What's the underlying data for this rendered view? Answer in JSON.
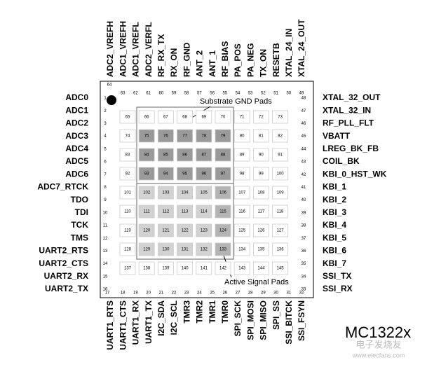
{
  "top_pins": [
    {
      "number": 64,
      "name": "ADC2_VREFH"
    },
    {
      "number": 63,
      "name": "ADC1_VREFH"
    },
    {
      "number": 62,
      "name": "ADC1_VREFL"
    },
    {
      "number": 61,
      "name": "ADC2_VERFL"
    },
    {
      "number": 60,
      "name": "RF_RX_TX"
    },
    {
      "number": 59,
      "name": "RX_ON"
    },
    {
      "number": 58,
      "name": "RF_GND"
    },
    {
      "number": 57,
      "name": "ANT_2"
    },
    {
      "number": 56,
      "name": "ANT_1"
    },
    {
      "number": 55,
      "name": "RF_BIAS"
    },
    {
      "number": 54,
      "name": "PA_POS"
    },
    {
      "number": 53,
      "name": "PA_NEG"
    },
    {
      "number": 52,
      "name": "TX_ON"
    },
    {
      "number": 51,
      "name": "RESETB"
    },
    {
      "number": 50,
      "name": "XTAL_24_IN"
    },
    {
      "number": 49,
      "name": "XTAL_24_OUT"
    }
  ],
  "left_pins": [
    {
      "number": 1,
      "name": "ADC0"
    },
    {
      "number": 2,
      "name": "ADC1"
    },
    {
      "number": 3,
      "name": "ADC2"
    },
    {
      "number": 4,
      "name": "ADC3"
    },
    {
      "number": 5,
      "name": "ADC4"
    },
    {
      "number": 6,
      "name": "ADC5"
    },
    {
      "number": 7,
      "name": "ADC6"
    },
    {
      "number": 8,
      "name": "ADC7_RTCK"
    },
    {
      "number": 9,
      "name": "TDO"
    },
    {
      "number": 10,
      "name": "TDI"
    },
    {
      "number": 11,
      "name": "TCK"
    },
    {
      "number": 12,
      "name": "TMS"
    },
    {
      "number": 13,
      "name": "UART2_RTS"
    },
    {
      "number": 14,
      "name": "UART2_CTS"
    },
    {
      "number": 15,
      "name": "UART2_RX"
    },
    {
      "number": 16,
      "name": "UART2_TX"
    }
  ],
  "bottom_pins": [
    {
      "number": 17,
      "name": "UART1_RTS"
    },
    {
      "number": 18,
      "name": "UART1_CTS"
    },
    {
      "number": 19,
      "name": "UART1_RX"
    },
    {
      "number": 20,
      "name": "UART1_TX"
    },
    {
      "number": 21,
      "name": "I2C_SDA"
    },
    {
      "number": 22,
      "name": "I2C_SCL"
    },
    {
      "number": 23,
      "name": "TMR3"
    },
    {
      "number": 24,
      "name": "TMR2"
    },
    {
      "number": 25,
      "name": "TMR1"
    },
    {
      "number": 26,
      "name": "TMR0"
    },
    {
      "number": 27,
      "name": "SPI_SCK"
    },
    {
      "number": 28,
      "name": "SPI_MOSI"
    },
    {
      "number": 29,
      "name": "SPI_MISO"
    },
    {
      "number": 30,
      "name": "SPI_SS"
    },
    {
      "number": 31,
      "name": "SSI_BITCK"
    },
    {
      "number": 32,
      "name": "SSI_FSYN"
    }
  ],
  "right_pins": [
    {
      "number": 48,
      "name": "XTAL_32_OUT"
    },
    {
      "number": 47,
      "name": "XTAL_32_IN"
    },
    {
      "number": 46,
      "name": "RF_PLL_FLT"
    },
    {
      "number": 45,
      "name": "VBATT"
    },
    {
      "number": 44,
      "name": "LREG_BK_FB"
    },
    {
      "number": 43,
      "name": "COIL_BK"
    },
    {
      "number": 42,
      "name": "KBI_0_HST_WK"
    },
    {
      "number": 41,
      "name": "KBI_1"
    },
    {
      "number": 40,
      "name": "KBI_2"
    },
    {
      "number": 39,
      "name": "KBI_3"
    },
    {
      "number": 38,
      "name": "KBI_4"
    },
    {
      "number": 37,
      "name": "KBI_5"
    },
    {
      "number": 36,
      "name": "KBI_6"
    },
    {
      "number": 35,
      "name": "KBI_7"
    },
    {
      "number": 34,
      "name": "SSI_TX"
    },
    {
      "number": 33,
      "name": "SSI_RX"
    }
  ],
  "pads": [
    [
      65,
      66,
      67,
      68,
      69,
      70,
      71,
      72,
      73
    ],
    [
      74,
      75,
      76,
      77,
      78,
      79,
      80,
      81,
      82
    ],
    [
      83,
      84,
      85,
      86,
      87,
      88,
      89,
      90,
      91
    ],
    [
      92,
      93,
      94,
      95,
      96,
      97,
      98,
      99,
      100
    ],
    [
      101,
      102,
      103,
      104,
      105,
      106,
      107,
      108,
      109
    ],
    [
      110,
      111,
      112,
      113,
      114,
      115,
      116,
      117,
      118
    ],
    [
      119,
      120,
      121,
      122,
      123,
      124,
      125,
      126,
      127
    ],
    [
      128,
      129,
      130,
      131,
      132,
      133,
      134,
      135,
      136
    ],
    [
      137,
      138,
      139,
      140,
      141,
      142,
      143,
      144,
      145
    ]
  ],
  "labels": {
    "substrate": "Substrate GND  Pads",
    "active": "Active Signal Pads",
    "part": "MC1322x",
    "watermark": "电子发烧友",
    "watermark_url": "www.elecfans.com"
  }
}
